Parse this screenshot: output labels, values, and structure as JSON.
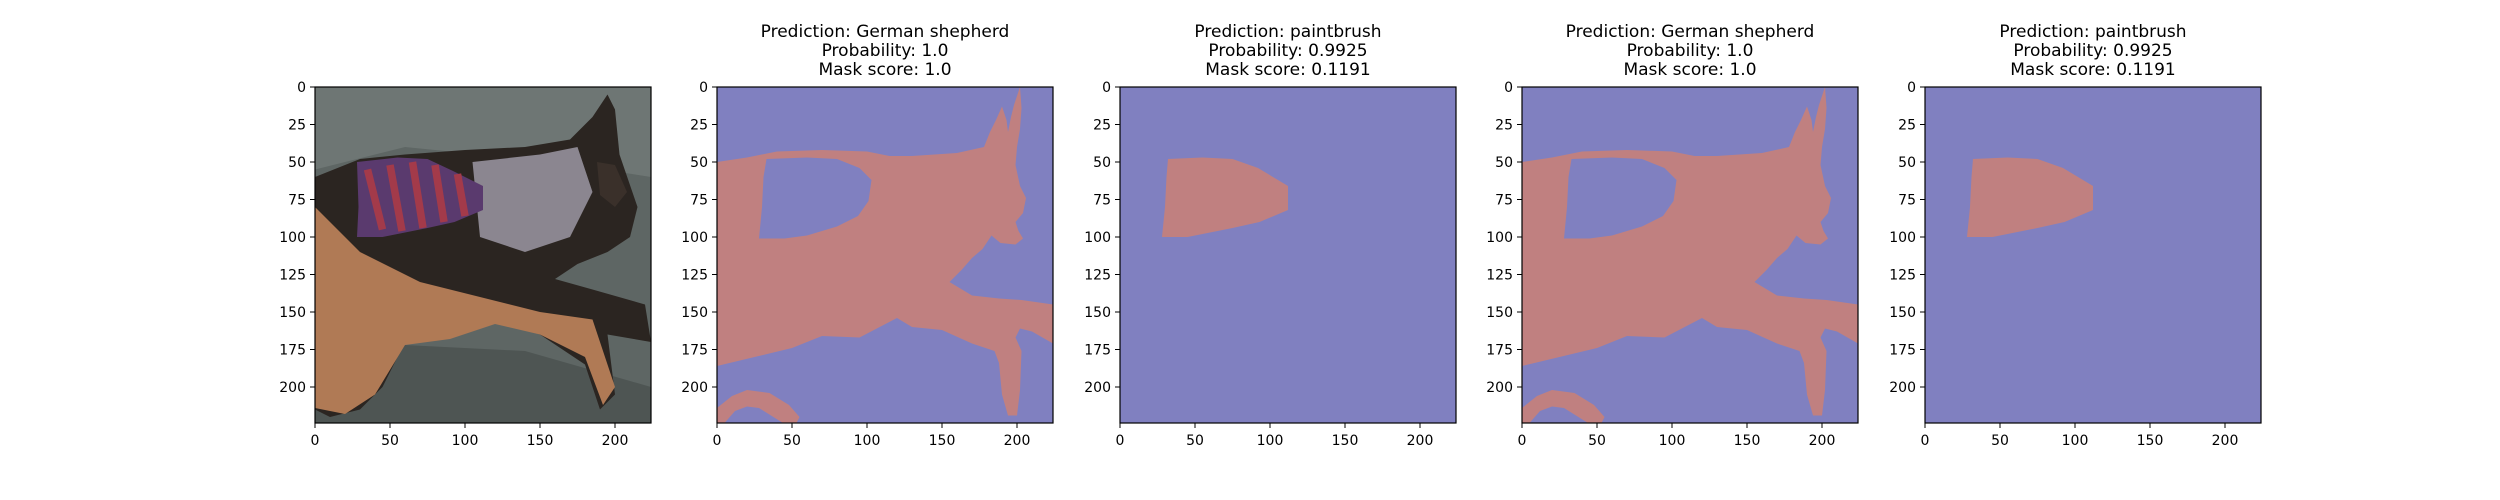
{
  "chart_data": [
    {
      "type": "image",
      "content": "photo of a German shepherd lying on a grey floor with a striped purple-red knitted sweater on its back",
      "title": [],
      "x_ticks": [
        0,
        50,
        100,
        150,
        200
      ],
      "y_ticks": [
        0,
        25,
        50,
        75,
        100,
        125,
        150,
        175,
        200
      ],
      "xlim": [
        0,
        224
      ],
      "ylim": [
        224,
        0
      ]
    },
    {
      "type": "segmentation_mask",
      "mask": "dog",
      "title": [
        "Prediction: German shepherd",
        "Probability: 1.0",
        "Mask score: 1.0"
      ],
      "x_ticks": [
        0,
        50,
        100,
        150,
        200
      ],
      "y_ticks": [
        0,
        25,
        50,
        75,
        100,
        125,
        150,
        175,
        200
      ],
      "xlim": [
        0,
        224
      ],
      "ylim": [
        224,
        0
      ]
    },
    {
      "type": "segmentation_mask",
      "mask": "sweater",
      "title": [
        "Prediction: paintbrush",
        "Probability: 0.9925",
        "Mask score: 0.1191"
      ],
      "x_ticks": [
        0,
        50,
        100,
        150,
        200
      ],
      "y_ticks": [
        0,
        25,
        50,
        75,
        100,
        125,
        150,
        175,
        200
      ],
      "xlim": [
        0,
        224
      ],
      "ylim": [
        224,
        0
      ]
    },
    {
      "type": "segmentation_mask",
      "mask": "dog",
      "title": [
        "Prediction: German shepherd",
        "Probability: 1.0",
        "Mask score: 1.0"
      ],
      "x_ticks": [
        0,
        50,
        100,
        150,
        200
      ],
      "y_ticks": [
        0,
        25,
        50,
        75,
        100,
        125,
        150,
        175,
        200
      ],
      "xlim": [
        0,
        224
      ],
      "ylim": [
        224,
        0
      ]
    },
    {
      "type": "segmentation_mask",
      "mask": "sweater",
      "title": [
        "Prediction: paintbrush",
        "Probability: 0.9925",
        "Mask score: 0.1191"
      ],
      "x_ticks": [
        0,
        50,
        100,
        150,
        200
      ],
      "y_ticks": [
        0,
        25,
        50,
        75,
        100,
        125,
        150,
        175,
        200
      ],
      "xlim": [
        0,
        224
      ],
      "ylim": [
        224,
        0
      ]
    }
  ],
  "colors": {
    "background": "#8080c0",
    "foreground": "#c08080",
    "axis": "#000000"
  }
}
